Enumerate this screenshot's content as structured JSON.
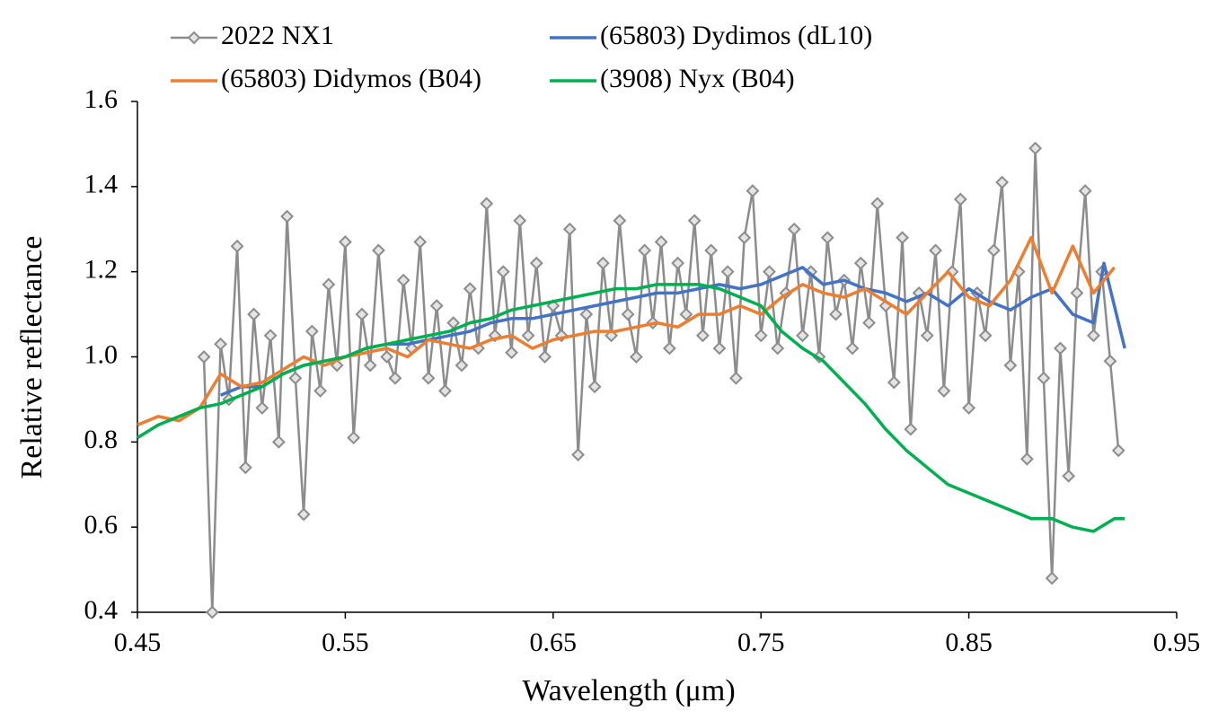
{
  "chart_data": {
    "type": "line",
    "xlabel": "Wavelength (μm)",
    "ylabel": "Relative reflectance",
    "xlim": [
      0.45,
      0.95
    ],
    "xticks": [
      0.45,
      0.55,
      0.65,
      0.75,
      0.85,
      0.95
    ],
    "ylim": [
      0.4,
      1.6
    ],
    "yticks": [
      0.4,
      0.6,
      0.8,
      {
        "value": 1,
        "label": "1.0"
      },
      1.2,
      1.4,
      1.6
    ],
    "grid": false,
    "legend": "top",
    "series": [
      {
        "name": "2022 NX1",
        "color": "#8c8c8c",
        "marker": "diamond",
        "x": [
          0.482,
          0.486,
          0.49,
          0.494,
          0.498,
          0.502,
          0.506,
          0.51,
          0.514,
          0.518,
          0.522,
          0.526,
          0.53,
          0.534,
          0.538,
          0.542,
          0.546,
          0.55,
          0.554,
          0.558,
          0.562,
          0.566,
          0.57,
          0.574,
          0.578,
          0.582,
          0.586,
          0.59,
          0.594,
          0.598,
          0.602,
          0.606,
          0.61,
          0.614,
          0.618,
          0.622,
          0.626,
          0.63,
          0.634,
          0.638,
          0.642,
          0.646,
          0.65,
          0.654,
          0.658,
          0.662,
          0.666,
          0.67,
          0.674,
          0.678,
          0.682,
          0.686,
          0.69,
          0.694,
          0.698,
          0.702,
          0.706,
          0.71,
          0.714,
          0.718,
          0.722,
          0.726,
          0.73,
          0.734,
          0.738,
          0.742,
          0.746,
          0.75,
          0.754,
          0.758,
          0.762,
          0.766,
          0.77,
          0.774,
          0.778,
          0.782,
          0.786,
          0.79,
          0.794,
          0.798,
          0.802,
          0.806,
          0.81,
          0.814,
          0.818,
          0.822,
          0.826,
          0.83,
          0.834,
          0.838,
          0.842,
          0.846,
          0.85,
          0.854,
          0.858,
          0.862,
          0.866,
          0.87,
          0.874,
          0.878,
          0.882,
          0.886,
          0.89,
          0.894,
          0.898,
          0.902,
          0.906,
          0.91,
          0.914,
          0.918,
          0.922
        ],
        "values": [
          1.0,
          0.4,
          1.03,
          0.9,
          1.26,
          0.74,
          1.1,
          0.88,
          1.05,
          0.8,
          1.33,
          0.95,
          0.63,
          1.06,
          0.92,
          1.17,
          0.98,
          1.27,
          0.81,
          1.1,
          0.98,
          1.25,
          1.0,
          0.95,
          1.18,
          1.02,
          1.27,
          0.95,
          1.12,
          0.92,
          1.08,
          0.98,
          1.16,
          1.02,
          1.36,
          1.05,
          1.2,
          1.01,
          1.32,
          1.05,
          1.22,
          1.0,
          1.12,
          1.05,
          1.3,
          0.77,
          1.1,
          0.93,
          1.22,
          1.05,
          1.32,
          1.1,
          1.0,
          1.25,
          1.08,
          1.27,
          1.02,
          1.22,
          1.1,
          1.32,
          1.05,
          1.25,
          1.02,
          1.2,
          0.95,
          1.28,
          1.39,
          1.05,
          1.2,
          1.02,
          1.15,
          1.3,
          1.05,
          1.2,
          1.0,
          1.28,
          1.1,
          1.18,
          1.02,
          1.22,
          1.08,
          1.36,
          1.12,
          0.94,
          1.28,
          0.83,
          1.15,
          1.05,
          1.25,
          0.92,
          1.2,
          1.37,
          0.88,
          1.15,
          1.05,
          1.25,
          1.41,
          0.98,
          1.2,
          0.76,
          1.49,
          0.95,
          0.48,
          1.02,
          0.72,
          1.15,
          1.39,
          1.05,
          1.2,
          0.99,
          0.78
        ]
      },
      {
        "name": "(65803) Dydimos (dL10)",
        "color": "#4472c4",
        "x": [
          0.49,
          0.5,
          0.51,
          0.52,
          0.53,
          0.54,
          0.55,
          0.56,
          0.57,
          0.58,
          0.59,
          0.6,
          0.61,
          0.62,
          0.63,
          0.64,
          0.65,
          0.66,
          0.67,
          0.68,
          0.69,
          0.7,
          0.71,
          0.72,
          0.73,
          0.74,
          0.75,
          0.76,
          0.77,
          0.78,
          0.79,
          0.8,
          0.81,
          0.82,
          0.83,
          0.84,
          0.85,
          0.86,
          0.87,
          0.88,
          0.89,
          0.9,
          0.91,
          0.915,
          0.925
        ],
        "values": [
          0.91,
          0.93,
          0.93,
          0.96,
          0.98,
          0.99,
          1.0,
          1.02,
          1.03,
          1.03,
          1.04,
          1.05,
          1.06,
          1.08,
          1.09,
          1.09,
          1.1,
          1.11,
          1.12,
          1.13,
          1.14,
          1.15,
          1.15,
          1.16,
          1.17,
          1.16,
          1.17,
          1.19,
          1.21,
          1.17,
          1.18,
          1.16,
          1.15,
          1.13,
          1.15,
          1.12,
          1.16,
          1.13,
          1.11,
          1.14,
          1.16,
          1.1,
          1.08,
          1.22,
          1.02
        ]
      },
      {
        "name": "(65803) Didymos (B04)",
        "color": "#ed7d31",
        "x": [
          0.45,
          0.46,
          0.47,
          0.48,
          0.49,
          0.5,
          0.51,
          0.52,
          0.53,
          0.54,
          0.55,
          0.56,
          0.57,
          0.58,
          0.59,
          0.6,
          0.61,
          0.62,
          0.63,
          0.64,
          0.65,
          0.66,
          0.67,
          0.68,
          0.69,
          0.7,
          0.71,
          0.72,
          0.73,
          0.74,
          0.75,
          0.76,
          0.77,
          0.78,
          0.79,
          0.8,
          0.81,
          0.82,
          0.83,
          0.84,
          0.85,
          0.86,
          0.87,
          0.88,
          0.89,
          0.9,
          0.91,
          0.92
        ],
        "values": [
          0.84,
          0.86,
          0.85,
          0.88,
          0.96,
          0.93,
          0.94,
          0.97,
          1.0,
          0.98,
          1.0,
          1.01,
          1.02,
          1.0,
          1.04,
          1.03,
          1.02,
          1.04,
          1.05,
          1.02,
          1.04,
          1.05,
          1.06,
          1.06,
          1.07,
          1.08,
          1.07,
          1.1,
          1.1,
          1.12,
          1.1,
          1.14,
          1.17,
          1.15,
          1.14,
          1.16,
          1.13,
          1.1,
          1.15,
          1.2,
          1.14,
          1.12,
          1.18,
          1.28,
          1.15,
          1.26,
          1.15,
          1.21
        ]
      },
      {
        "name": "(3908) Nyx (B04)",
        "color": "#00b050",
        "x": [
          0.45,
          0.46,
          0.47,
          0.48,
          0.49,
          0.5,
          0.51,
          0.52,
          0.53,
          0.54,
          0.55,
          0.56,
          0.57,
          0.58,
          0.59,
          0.6,
          0.61,
          0.62,
          0.63,
          0.64,
          0.65,
          0.66,
          0.67,
          0.68,
          0.69,
          0.7,
          0.71,
          0.72,
          0.73,
          0.74,
          0.75,
          0.76,
          0.77,
          0.78,
          0.79,
          0.8,
          0.81,
          0.82,
          0.83,
          0.84,
          0.85,
          0.86,
          0.87,
          0.88,
          0.89,
          0.9,
          0.91,
          0.92,
          0.925
        ],
        "values": [
          0.81,
          0.84,
          0.86,
          0.88,
          0.89,
          0.91,
          0.93,
          0.96,
          0.98,
          0.99,
          1.0,
          1.02,
          1.03,
          1.04,
          1.05,
          1.06,
          1.08,
          1.09,
          1.11,
          1.12,
          1.13,
          1.14,
          1.15,
          1.16,
          1.16,
          1.17,
          1.17,
          1.17,
          1.16,
          1.14,
          1.12,
          1.06,
          1.02,
          0.99,
          0.94,
          0.89,
          0.83,
          0.78,
          0.74,
          0.7,
          0.68,
          0.66,
          0.64,
          0.62,
          0.62,
          0.6,
          0.59,
          0.62,
          0.62
        ]
      }
    ]
  }
}
